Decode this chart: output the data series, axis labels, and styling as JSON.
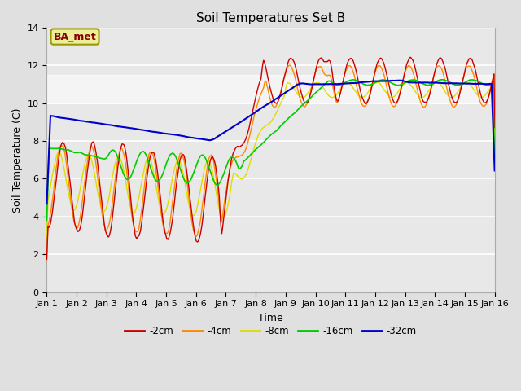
{
  "title": "Soil Temperatures Set B",
  "xlabel": "Time",
  "ylabel": "Soil Temperature (C)",
  "xlim": [
    0,
    15
  ],
  "ylim": [
    0,
    14
  ],
  "yticks": [
    0,
    2,
    4,
    6,
    8,
    10,
    12,
    14
  ],
  "xtick_labels": [
    "Jan 1",
    "Jan 2",
    "Jan 3",
    "Jan 4",
    "Jan 5",
    "Jan 6",
    "Jan 7",
    "Jan 8",
    "Jan 9",
    "Jan 10",
    "Jan 11",
    "Jan 12",
    "Jan 13",
    "Jan 14",
    "Jan 15",
    "Jan 16"
  ],
  "annotation_text": "BA_met",
  "legend_entries": [
    "-2cm",
    "-4cm",
    "-8cm",
    "-16cm",
    "-32cm"
  ],
  "colors": {
    "-2cm": "#cc0000",
    "-4cm": "#ff8800",
    "-8cm": "#dddd00",
    "-16cm": "#00cc00",
    "-32cm": "#0000cc"
  },
  "bg_color": "#e0e0e0",
  "plot_bg_color": "#e8e8e8",
  "shaded_band": [
    10.0,
    11.5
  ],
  "title_fontsize": 11,
  "label_fontsize": 9,
  "tick_fontsize": 8
}
